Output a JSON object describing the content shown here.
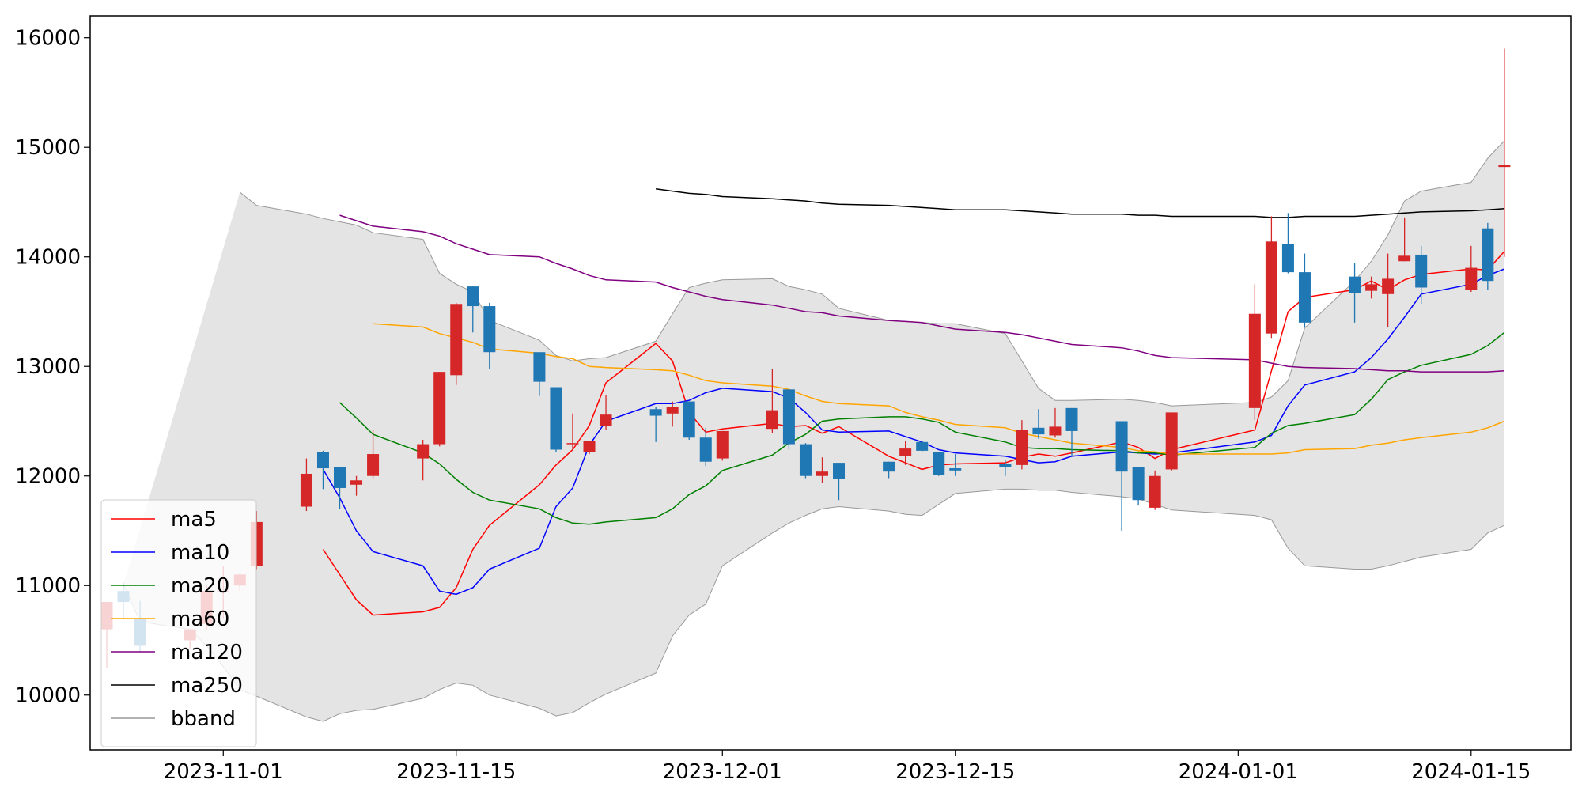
{
  "chart_data": {
    "type": "candlestick",
    "x_ticks": [
      "2023-11-01",
      "2023-11-15",
      "2023-12-01",
      "2023-12-15",
      "2024-01-01",
      "2024-01-15"
    ],
    "y_ticks": [
      10000,
      11000,
      12000,
      13000,
      14000,
      15000,
      16000
    ],
    "xlim": [
      "2023-10-24",
      "2024-01-21"
    ],
    "ylim": [
      9500,
      16200
    ],
    "grid": false,
    "legend_position": "lower-left",
    "colors": {
      "up": "#d62728",
      "down": "#1f77b4",
      "band_fill": "#e4e4e4",
      "band_edge": "#999999"
    },
    "dates": [
      "2023-10-25",
      "2023-10-26",
      "2023-10-27",
      "2023-10-30",
      "2023-10-31",
      "2023-11-01",
      "2023-11-02",
      "2023-11-03",
      "2023-11-06",
      "2023-11-07",
      "2023-11-08",
      "2023-11-09",
      "2023-11-10",
      "2023-11-13",
      "2023-11-14",
      "2023-11-15",
      "2023-11-16",
      "2023-11-17",
      "2023-11-20",
      "2023-11-21",
      "2023-11-22",
      "2023-11-23",
      "2023-11-24",
      "2023-11-27",
      "2023-11-28",
      "2023-11-29",
      "2023-11-30",
      "2023-12-01",
      "2023-12-04",
      "2023-12-05",
      "2023-12-06",
      "2023-12-07",
      "2023-12-08",
      "2023-12-11",
      "2023-12-12",
      "2023-12-13",
      "2023-12-14",
      "2023-12-15",
      "2023-12-18",
      "2023-12-19",
      "2023-12-20",
      "2023-12-21",
      "2023-12-22",
      "2023-12-25",
      "2023-12-26",
      "2023-12-27",
      "2023-12-28",
      "2024-01-02",
      "2024-01-03",
      "2024-01-04",
      "2024-01-05",
      "2024-01-08",
      "2024-01-09",
      "2024-01-10",
      "2024-01-11",
      "2024-01-12",
      "2024-01-15",
      "2024-01-16",
      "2024-01-17"
    ],
    "ohlc": [
      [
        10600,
        10850,
        10250,
        10850
      ],
      [
        10950,
        11030,
        10700,
        10850
      ],
      [
        10700,
        10860,
        10400,
        10450
      ],
      [
        10500,
        10600,
        10420,
        10600
      ],
      [
        10650,
        11000,
        10600,
        10950
      ],
      [
        10950,
        11180,
        10700,
        10950
      ],
      [
        11000,
        11110,
        10950,
        11100
      ],
      [
        11180,
        11680,
        11150,
        11580
      ],
      [
        11720,
        12160,
        11680,
        12020
      ],
      [
        12220,
        12230,
        11880,
        12070
      ],
      [
        12080,
        12080,
        11700,
        11890
      ],
      [
        11920,
        12000,
        11820,
        11960
      ],
      [
        12000,
        12420,
        11980,
        12200
      ],
      [
        12160,
        12330,
        11960,
        12290
      ],
      [
        12290,
        12950,
        12270,
        12950
      ],
      [
        12920,
        13580,
        12830,
        13570
      ],
      [
        13730,
        13730,
        13310,
        13550
      ],
      [
        13550,
        13580,
        12980,
        13130
      ],
      [
        13130,
        13130,
        12730,
        12860
      ],
      [
        12810,
        12810,
        12220,
        12240
      ],
      [
        12290,
        12570,
        12230,
        12300
      ],
      [
        12220,
        12320,
        12200,
        12320
      ],
      [
        12460,
        12740,
        12420,
        12560
      ],
      [
        12610,
        12630,
        12310,
        12550
      ],
      [
        12570,
        12680,
        12450,
        12630
      ],
      [
        12680,
        12680,
        12330,
        12350
      ],
      [
        12350,
        12440,
        12090,
        12130
      ],
      [
        12160,
        12410,
        12140,
        12410
      ],
      [
        12430,
        12980,
        12390,
        12600
      ],
      [
        12790,
        12790,
        12240,
        12290
      ],
      [
        12290,
        12300,
        11980,
        12000
      ],
      [
        12000,
        12170,
        11940,
        12040
      ],
      [
        12120,
        12120,
        11780,
        11970
      ],
      [
        12130,
        12130,
        11980,
        12040
      ],
      [
        12180,
        12320,
        12100,
        12250
      ],
      [
        12310,
        12320,
        12220,
        12230
      ],
      [
        12220,
        12220,
        12000,
        12010
      ],
      [
        12070,
        12200,
        12000,
        12050
      ],
      [
        12110,
        12150,
        12000,
        12080
      ],
      [
        12100,
        12510,
        12060,
        12420
      ],
      [
        12440,
        12610,
        12340,
        12380
      ],
      [
        12370,
        12620,
        12350,
        12450
      ],
      [
        12620,
        12620,
        12180,
        12410
      ],
      [
        12500,
        12500,
        11500,
        12040
      ],
      [
        12080,
        12080,
        11730,
        11780
      ],
      [
        11710,
        12050,
        11690,
        12000
      ],
      [
        12060,
        12580,
        12050,
        12580
      ],
      [
        12620,
        13750,
        12510,
        13480
      ],
      [
        13300,
        14370,
        13260,
        14140
      ],
      [
        14120,
        14400,
        13850,
        13860
      ],
      [
        13860,
        14030,
        13360,
        13400
      ],
      [
        13820,
        13940,
        13400,
        13670
      ],
      [
        13690,
        13820,
        13620,
        13750
      ],
      [
        13660,
        14030,
        13360,
        13800
      ],
      [
        13960,
        14360,
        13960,
        14010
      ],
      [
        14020,
        14100,
        13570,
        13720
      ],
      [
        13700,
        14100,
        13680,
        13900
      ],
      [
        14260,
        14310,
        13700,
        13780
      ],
      [
        14820,
        15900,
        14000,
        14840
      ]
    ],
    "ma5": [
      11330,
      11100,
      10870,
      10730,
      10760,
      10800,
      10980,
      11330,
      11550,
      11920,
      12100,
      12240,
      12460,
      12850,
      13210,
      13050,
      12580,
      12400,
      12430,
      12480,
      12450,
      12460,
      12390,
      12450,
      12180,
      12120,
      12060,
      12100,
      12110,
      12120,
      12170,
      12200,
      12180,
      12210,
      12310,
      12260,
      12160,
      12240,
      12420,
      12960,
      13500,
      13630,
      13700,
      13780,
      13700,
      13790,
      13840,
      13890,
      13880,
      14050
    ],
    "ma10": [
      12060,
      11800,
      11500,
      11310,
      11180,
      10950,
      10920,
      10980,
      11150,
      11340,
      11720,
      11890,
      12280,
      12500,
      12660,
      12660,
      12690,
      12760,
      12800,
      12770,
      12710,
      12580,
      12420,
      12400,
      12410,
      12360,
      12310,
      12240,
      12210,
      12180,
      12150,
      12120,
      12130,
      12180,
      12220,
      12210,
      12200,
      12210,
      12310,
      12370,
      12640,
      12830,
      12950,
      13080,
      13250,
      13450,
      13660,
      13750,
      13830,
      13890
    ],
    "ma20": [
      12670,
      12530,
      12380,
      12210,
      12110,
      11970,
      11850,
      11780,
      11700,
      11620,
      11570,
      11560,
      11580,
      11620,
      11700,
      11830,
      11910,
      12050,
      12190,
      12300,
      12380,
      12500,
      12520,
      12540,
      12540,
      12520,
      12490,
      12400,
      12310,
      12260,
      12250,
      12250,
      12240,
      12230,
      12210,
      12210,
      12190,
      12260,
      12390,
      12460,
      12480,
      12560,
      12700,
      12880,
      12950,
      13010,
      13110,
      13190,
      13310
    ],
    "ma60": [
      13390,
      13360,
      13300,
      13260,
      13220,
      13160,
      13120,
      13090,
      13070,
      13000,
      12990,
      12970,
      12960,
      12920,
      12870,
      12850,
      12820,
      12790,
      12730,
      12680,
      12660,
      12640,
      12580,
      12540,
      12510,
      12470,
      12440,
      12390,
      12360,
      12330,
      12300,
      12260,
      12230,
      12220,
      12200,
      12200,
      12200,
      12210,
      12240,
      12250,
      12280,
      12300,
      12330,
      12350,
      12400,
      12440,
      12500
    ],
    "ma120": [
      14380,
      14330,
      14280,
      14230,
      14190,
      14120,
      14070,
      14020,
      14000,
      13940,
      13890,
      13830,
      13790,
      13770,
      13720,
      13680,
      13640,
      13610,
      13560,
      13530,
      13500,
      13490,
      13460,
      13420,
      13410,
      13400,
      13370,
      13340,
      13310,
      13290,
      13260,
      13230,
      13200,
      13170,
      13140,
      13100,
      13080,
      13060,
      13030,
      13000,
      12990,
      12980,
      12970,
      12960,
      12960,
      12950,
      12950,
      12950,
      12960
    ],
    "ma250": [
      14620,
      14600,
      14580,
      14570,
      14550,
      14530,
      14520,
      14510,
      14490,
      14480,
      14470,
      14460,
      14450,
      14440,
      14430,
      14430,
      14420,
      14410,
      14400,
      14390,
      14390,
      14380,
      14380,
      14370,
      14370,
      14360,
      14360,
      14370,
      14370,
      14380,
      14390,
      14400,
      14410,
      14420,
      14430,
      14440
    ],
    "bband_upper": [
      14590,
      14470,
      14390,
      14350,
      14320,
      14290,
      14220,
      14160,
      13850,
      13750,
      13680,
      13420,
      13240,
      13100,
      13050,
      13070,
      13080,
      13230,
      13480,
      13720,
      13760,
      13790,
      13800,
      13730,
      13700,
      13660,
      13530,
      13420,
      13410,
      13400,
      13390,
      13390,
      13300,
      13050,
      12800,
      12690,
      12690,
      12700,
      12690,
      12670,
      12640,
      12670,
      12720,
      12870,
      13350,
      13780,
      13960,
      14200,
      14510,
      14600,
      14680,
      14900,
      15060
    ],
    "bband_lower": [
      11010,
      10670,
      10600,
      10450,
      10260,
      10050,
      9990,
      9800,
      9760,
      9830,
      9860,
      9870,
      9970,
      10050,
      10110,
      10090,
      10000,
      9880,
      9810,
      9840,
      9930,
      10010,
      10200,
      10540,
      10730,
      10830,
      11180,
      11480,
      11570,
      11640,
      11700,
      11720,
      11680,
      11650,
      11640,
      11740,
      11840,
      11880,
      11880,
      11870,
      11870,
      11850,
      11810,
      11790,
      11740,
      11690,
      11640,
      11600,
      11340,
      11180,
      11150,
      11150,
      11180,
      11220,
      11260,
      11330,
      11480,
      11550
    ]
  },
  "legend": {
    "items": [
      {
        "label": "ma5",
        "color": "#ff0000"
      },
      {
        "label": "ma10",
        "color": "#0000ff"
      },
      {
        "label": "ma20",
        "color": "#008000"
      },
      {
        "label": "ma60",
        "color": "#ffa500"
      },
      {
        "label": "ma120",
        "color": "#800080"
      },
      {
        "label": "ma250",
        "color": "#000000"
      },
      {
        "label": "bband",
        "color": "#999999"
      }
    ]
  }
}
